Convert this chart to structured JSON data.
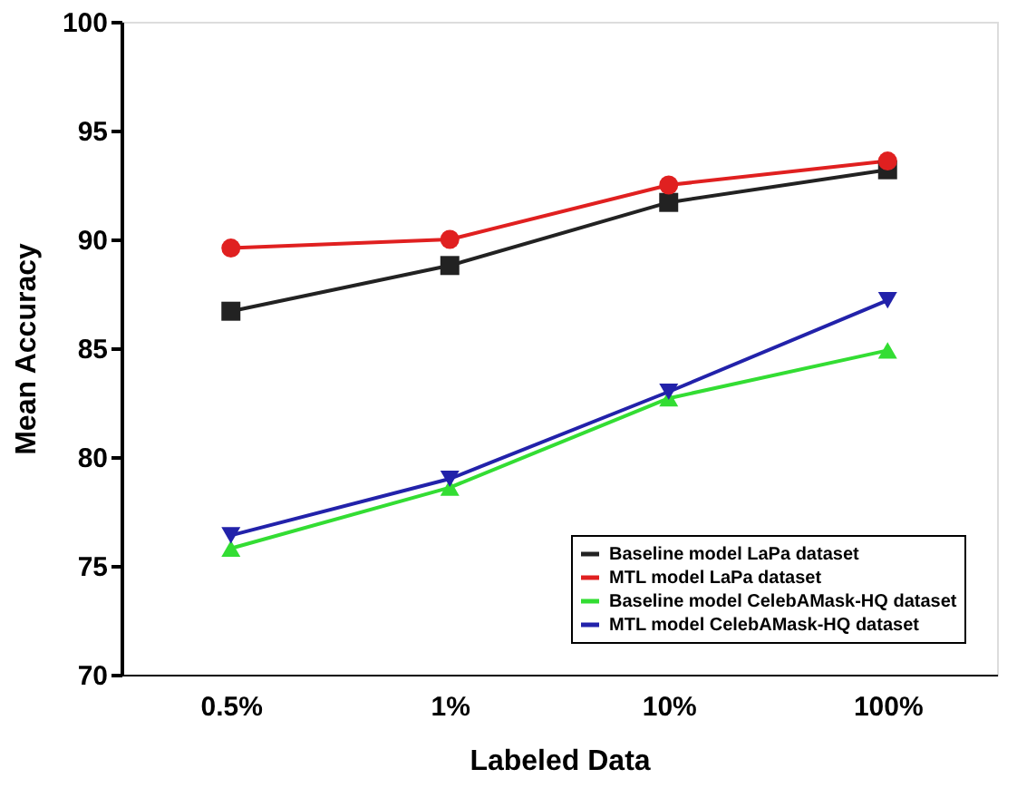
{
  "chart_data": {
    "type": "line",
    "xlabel": "Labeled Data",
    "ylabel": "Mean Accuracy",
    "categories": [
      "0.5%",
      "1%",
      "10%",
      "100%"
    ],
    "ylim": [
      70,
      100
    ],
    "yticks": [
      70,
      75,
      80,
      85,
      90,
      95,
      100
    ],
    "grid": false,
    "legend": "bottom right",
    "series": [
      {
        "name": "Baseline model LaPa dataset",
        "color": "#222222",
        "marker": "square",
        "values": [
          86.7,
          88.8,
          91.7,
          93.2
        ]
      },
      {
        "name": "MTL model LaPa dataset",
        "color": "#e02020",
        "marker": "circle",
        "values": [
          89.6,
          90.0,
          92.5,
          93.6
        ]
      },
      {
        "name": "Baseline model CelebAMask-HQ dataset",
        "color": "#33dd33",
        "marker": "triangle-up",
        "values": [
          75.8,
          78.6,
          82.7,
          84.9
        ]
      },
      {
        "name": "MTL model CelebAMask-HQ dataset",
        "color": "#2222aa",
        "marker": "triangle-down",
        "values": [
          76.4,
          79.0,
          83.0,
          87.2
        ]
      }
    ]
  }
}
